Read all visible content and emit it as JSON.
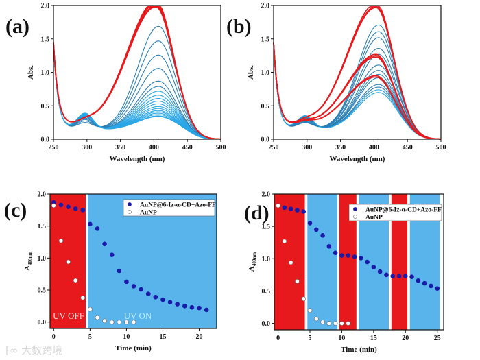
{
  "colors": {
    "red": "#e8191c",
    "blue_band": "#5ab4ec",
    "cyan_curve": "#29a6e6",
    "teal_curve": "#2a7fb5",
    "dot": "#1a1aa8",
    "uv_on_text": "#bff0ff",
    "uv_off_text": "#ffe0e0"
  },
  "watermark": "大数跨境",
  "chart_data": [
    {
      "panel": "(a)",
      "type": "line",
      "xlabel": "Wavelength (nm)",
      "ylabel": "Abs.",
      "xlim": [
        250,
        500
      ],
      "ylim": [
        0,
        2.0
      ],
      "xticks": [
        "250",
        "300",
        "350",
        "400",
        "450",
        "500"
      ],
      "yticks": [
        "0.0",
        "0.5",
        "1.0",
        "1.5",
        "2.0"
      ],
      "peak_nm": 405,
      "red_series_peak_abs": [
        1.78,
        1.8,
        1.83,
        1.85,
        1.87
      ],
      "blue_series_peak_abs": [
        1.55,
        1.33,
        1.12,
        0.92,
        0.73,
        0.65,
        0.58,
        0.52,
        0.47,
        0.43,
        0.39,
        0.35,
        0.32,
        0.29,
        0.27,
        0.25,
        0.23,
        0.21,
        0.2
      ]
    },
    {
      "panel": "(b)",
      "type": "line",
      "xlabel": "Wavelength (nm)",
      "ylabel": "Abs.",
      "xlim": [
        250,
        500
      ],
      "ylim": [
        0,
        2.0
      ],
      "xticks": [
        "250",
        "300",
        "350",
        "400",
        "450",
        "500"
      ],
      "yticks": [
        "0.0",
        "0.5",
        "1.0",
        "1.5",
        "2.0"
      ],
      "peak_nm": 405,
      "red_series_peak_abs": [
        1.77,
        1.79,
        1.83,
        1.03,
        1.05,
        1.07,
        0.73,
        0.75
      ],
      "blue_series_peak_abs": [
        1.57,
        1.47,
        1.38,
        1.22,
        1.13,
        0.97,
        0.89,
        0.83,
        0.78,
        0.68,
        0.64,
        0.6,
        0.56
      ]
    },
    {
      "panel": "(c)",
      "type": "scatter",
      "xlabel": "Time (min)",
      "ylabel_main": "A",
      "ylabel_sub": "400nm",
      "xlim": [
        -0.5,
        22.4
      ],
      "ylim": [
        -0.1,
        2.0
      ],
      "xticks": [
        "0",
        "5",
        "10",
        "15",
        "20"
      ],
      "yticks": [
        "0.0",
        "0.5",
        "1.0",
        "1.5",
        "2.0"
      ],
      "bands": [
        {
          "state": "off",
          "from": -0.5,
          "to": 4.4
        },
        {
          "state": "on",
          "from": 4.7,
          "to": 22.4
        }
      ],
      "annotations": {
        "off": "UV OFF",
        "on": "UV ON"
      },
      "legend_position": "top-right",
      "series": [
        {
          "name": "AuNP@6-Iz-α-CD+Azo-FF",
          "marker": "filled",
          "x": [
            0,
            1,
            2,
            3,
            4,
            5,
            6,
            7,
            8,
            9,
            10,
            11,
            12,
            13,
            14,
            15,
            16,
            17,
            18,
            19,
            20,
            21
          ],
          "y": [
            1.87,
            1.83,
            1.8,
            1.77,
            1.75,
            1.53,
            1.46,
            1.22,
            1.05,
            0.8,
            0.63,
            0.56,
            0.51,
            0.44,
            0.39,
            0.35,
            0.31,
            0.28,
            0.25,
            0.23,
            0.22,
            0.19
          ]
        },
        {
          "name": "AuNP",
          "marker": "open",
          "x": [
            0,
            1,
            2,
            3,
            4,
            5,
            6,
            7,
            8,
            9,
            10,
            11
          ],
          "y": [
            1.82,
            1.27,
            0.94,
            0.65,
            0.38,
            0.2,
            0.07,
            0.02,
            0.0,
            0.0,
            0.0,
            0.0
          ]
        }
      ]
    },
    {
      "panel": "(d)",
      "type": "scatter",
      "xlabel": "Time (min)",
      "ylabel_main": "A",
      "ylabel_sub": "400nm",
      "xlim": [
        -0.6,
        26
      ],
      "ylim": [
        -0.1,
        2.0
      ],
      "xticks": [
        "0",
        "5",
        "10",
        "15",
        "20",
        "25"
      ],
      "yticks": [
        "0.0",
        "0.5",
        "1.0",
        "1.5",
        "2.0"
      ],
      "bands": [
        {
          "state": "off",
          "from": -0.6,
          "to": 4.2
        },
        {
          "state": "on",
          "from": 4.6,
          "to": 9.3
        },
        {
          "state": "off",
          "from": 9.6,
          "to": 12.3
        },
        {
          "state": "on",
          "from": 12.7,
          "to": 17.4
        },
        {
          "state": "off",
          "from": 17.8,
          "to": 20.3
        },
        {
          "state": "on",
          "from": 20.7,
          "to": 25.4
        }
      ],
      "legend_position": "top-right",
      "series": [
        {
          "name": "AuNP@6-Iz-α-CD+Azo-FF",
          "marker": "filled",
          "x": [
            0,
            1,
            2,
            3,
            4,
            5,
            6,
            7,
            8,
            9,
            10,
            11,
            12,
            13,
            14,
            15,
            16,
            17,
            18,
            19,
            20,
            21,
            22,
            23,
            24,
            25
          ],
          "y": [
            1.82,
            1.79,
            1.77,
            1.75,
            1.73,
            1.55,
            1.45,
            1.36,
            1.19,
            1.09,
            1.05,
            1.05,
            1.03,
            1.01,
            0.95,
            0.87,
            0.8,
            0.75,
            0.73,
            0.73,
            0.73,
            0.72,
            0.66,
            0.62,
            0.58,
            0.54
          ]
        },
        {
          "name": "AuNP",
          "marker": "open",
          "x": [
            0,
            1,
            2,
            3,
            4,
            5,
            6,
            7,
            8,
            9,
            10,
            11
          ],
          "y": [
            1.82,
            1.27,
            0.94,
            0.65,
            0.38,
            0.2,
            0.07,
            0.02,
            0.0,
            0.0,
            0.0,
            0.0
          ]
        }
      ]
    }
  ]
}
